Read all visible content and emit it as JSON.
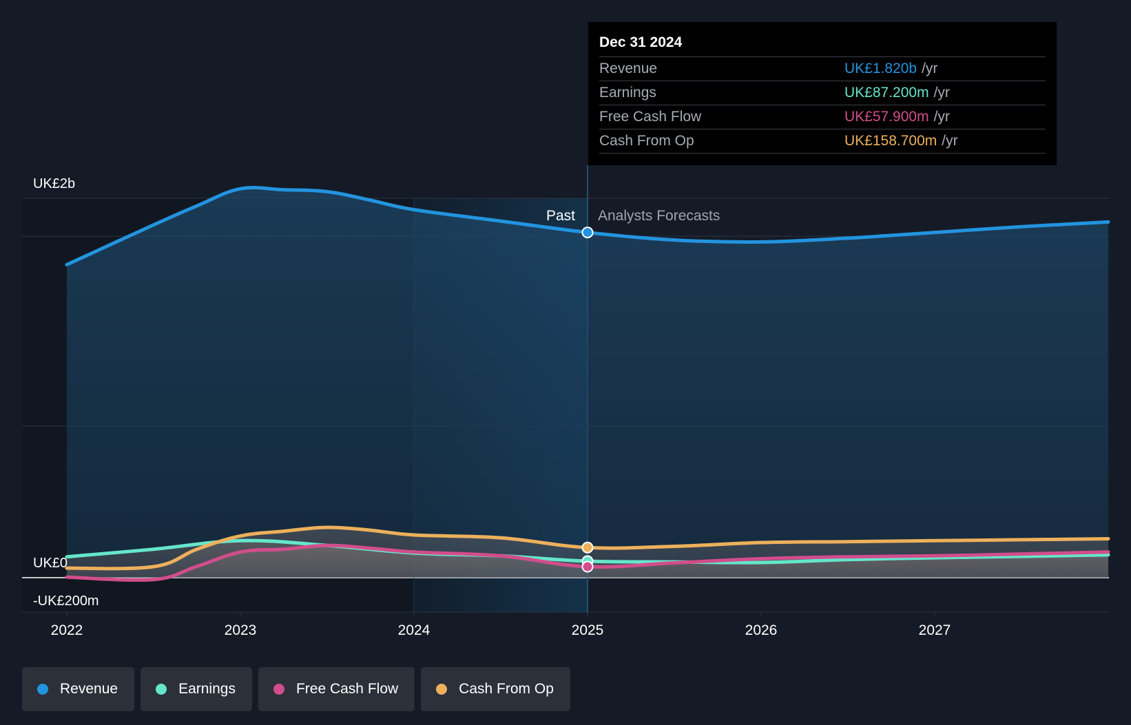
{
  "chart_data": {
    "type": "line",
    "y_axis_labels": [
      "UK£2b",
      "UK£0",
      "-UK£200m"
    ],
    "x_axis_labels": [
      "2022",
      "2023",
      "2024",
      "2025",
      "2026",
      "2027"
    ],
    "ylim": [
      -200,
      2000
    ],
    "divider_labels": {
      "past": "Past",
      "forecast": "Analysts Forecasts"
    },
    "series": [
      {
        "name": "Revenue",
        "color": "#2394df",
        "points": [
          [
            2022.0,
            1650
          ],
          [
            2022.5,
            1860
          ],
          [
            2022.75,
            1960
          ],
          [
            2023.0,
            2050
          ],
          [
            2023.25,
            2045
          ],
          [
            2023.5,
            2035
          ],
          [
            2023.75,
            1990
          ],
          [
            2024.0,
            1940
          ],
          [
            2024.5,
            1880
          ],
          [
            2025.0,
            1820
          ],
          [
            2025.5,
            1780
          ],
          [
            2026.0,
            1770
          ],
          [
            2026.5,
            1790
          ],
          [
            2027.0,
            1820
          ],
          [
            2027.5,
            1850
          ],
          [
            2028.0,
            1875
          ]
        ]
      },
      {
        "name": "Earnings",
        "color": "#65e6cb",
        "points": [
          [
            2022.0,
            110
          ],
          [
            2022.5,
            150
          ],
          [
            2023.0,
            195
          ],
          [
            2023.5,
            170
          ],
          [
            2024.0,
            130
          ],
          [
            2024.5,
            115
          ],
          [
            2025.0,
            87.2
          ],
          [
            2025.5,
            83
          ],
          [
            2026.0,
            80
          ],
          [
            2026.5,
            95
          ],
          [
            2027.0,
            105
          ],
          [
            2027.5,
            112
          ],
          [
            2028.0,
            120
          ]
        ]
      },
      {
        "name": "Free Cash Flow",
        "color": "#d24d8b",
        "points": [
          [
            2022.0,
            3
          ],
          [
            2022.5,
            -10
          ],
          [
            2022.75,
            60
          ],
          [
            2023.0,
            135
          ],
          [
            2023.25,
            150
          ],
          [
            2023.5,
            170
          ],
          [
            2023.75,
            155
          ],
          [
            2024.0,
            135
          ],
          [
            2024.5,
            115
          ],
          [
            2025.0,
            57.9
          ],
          [
            2025.5,
            78
          ],
          [
            2026.0,
            100
          ],
          [
            2026.5,
            110
          ],
          [
            2027.0,
            115
          ],
          [
            2027.5,
            125
          ],
          [
            2028.0,
            135
          ]
        ]
      },
      {
        "name": "Cash From Op",
        "color": "#edb05c",
        "points": [
          [
            2022.0,
            50
          ],
          [
            2022.5,
            58
          ],
          [
            2022.75,
            150
          ],
          [
            2023.0,
            220
          ],
          [
            2023.25,
            245
          ],
          [
            2023.5,
            265
          ],
          [
            2023.75,
            250
          ],
          [
            2024.0,
            225
          ],
          [
            2024.5,
            210
          ],
          [
            2025.0,
            158.7
          ],
          [
            2025.5,
            165
          ],
          [
            2026.0,
            185
          ],
          [
            2026.5,
            190
          ],
          [
            2027.0,
            195
          ],
          [
            2027.5,
            200
          ],
          [
            2028.0,
            205
          ]
        ]
      }
    ],
    "tooltip": {
      "date": "Dec 31 2024",
      "unit": "/yr",
      "rows": [
        {
          "label": "Revenue",
          "value": "UK£1.820b",
          "color": "#2394df"
        },
        {
          "label": "Earnings",
          "value": "UK£87.200m",
          "color": "#65e6cb"
        },
        {
          "label": "Free Cash Flow",
          "value": "UK£57.900m",
          "color": "#d24d8b"
        },
        {
          "label": "Cash From Op",
          "value": "UK£158.700m",
          "color": "#edb05c"
        }
      ]
    }
  },
  "legend": [
    {
      "label": "Revenue",
      "color": "#2394df"
    },
    {
      "label": "Earnings",
      "color": "#65e6cb"
    },
    {
      "label": "Free Cash Flow",
      "color": "#d24d8b"
    },
    {
      "label": "Cash From Op",
      "color": "#edb05c"
    }
  ]
}
